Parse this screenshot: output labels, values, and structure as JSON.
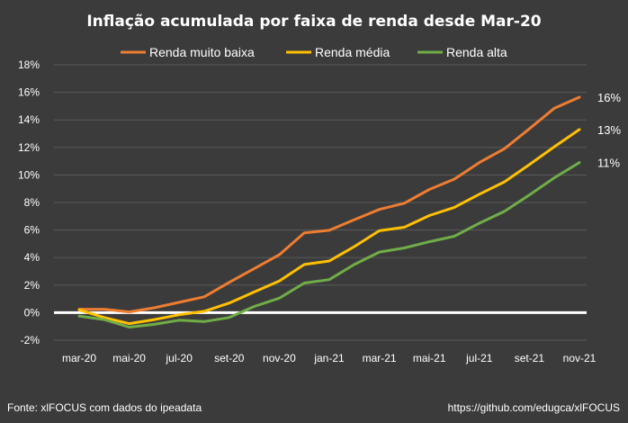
{
  "chart_data": {
    "type": "line",
    "title": "Inflação acumulada por faixa de renda desde Mar-20",
    "xlabel": "",
    "ylabel": "",
    "ylim": [
      -2,
      18
    ],
    "yticks": [
      -2,
      0,
      2,
      4,
      6,
      8,
      10,
      12,
      14,
      16,
      18
    ],
    "ytick_labels": [
      "-2%",
      "0%",
      "2%",
      "4%",
      "6%",
      "8%",
      "10%",
      "12%",
      "14%",
      "16%",
      "18%"
    ],
    "x": [
      "mar-20",
      "abr-20",
      "mai-20",
      "jun-20",
      "jul-20",
      "ago-20",
      "set-20",
      "out-20",
      "nov-20",
      "dez-20",
      "jan-21",
      "fev-21",
      "mar-21",
      "abr-21",
      "mai-21",
      "jun-21",
      "jul-21",
      "ago-21",
      "set-21",
      "out-21",
      "nov-21"
    ],
    "xtick_labels": [
      "mar-20",
      "mai-20",
      "jul-20",
      "set-20",
      "nov-20",
      "jan-21",
      "mar-21",
      "mai-21",
      "jul-21",
      "set-21",
      "nov-21"
    ],
    "xtick_indices": [
      0,
      2,
      4,
      6,
      8,
      10,
      12,
      14,
      16,
      18,
      20
    ],
    "grid": true,
    "legend_position": "top",
    "series": [
      {
        "name": "Renda muito baixa",
        "color": "#ed7d31",
        "values": [
          0.25,
          0.25,
          0.05,
          0.35,
          0.75,
          1.15,
          2.2,
          3.2,
          4.2,
          5.8,
          5.98,
          6.75,
          7.5,
          7.95,
          8.95,
          9.7,
          10.9,
          11.9,
          13.35,
          14.85,
          15.65
        ],
        "end_label": "16%"
      },
      {
        "name": "Renda média",
        "color": "#ffc000",
        "values": [
          0.2,
          -0.35,
          -0.8,
          -0.5,
          -0.15,
          0.1,
          0.7,
          1.5,
          2.3,
          3.5,
          3.75,
          4.8,
          5.95,
          6.2,
          7.05,
          7.65,
          8.6,
          9.5,
          10.75,
          12.05,
          13.3
        ],
        "end_label": "13%"
      },
      {
        "name": "Renda alta",
        "color": "#70ad47",
        "values": [
          -0.25,
          -0.5,
          -1.05,
          -0.85,
          -0.55,
          -0.65,
          -0.35,
          0.45,
          1.05,
          2.15,
          2.4,
          3.5,
          4.4,
          4.7,
          5.15,
          5.55,
          6.5,
          7.35,
          8.55,
          9.8,
          10.9
        ],
        "end_label": "11%"
      }
    ]
  },
  "footer": {
    "source": "Fonte: xlFOCUS com dados do ipeadata",
    "url": "https://github.com/edugca/xlFOCUS"
  }
}
